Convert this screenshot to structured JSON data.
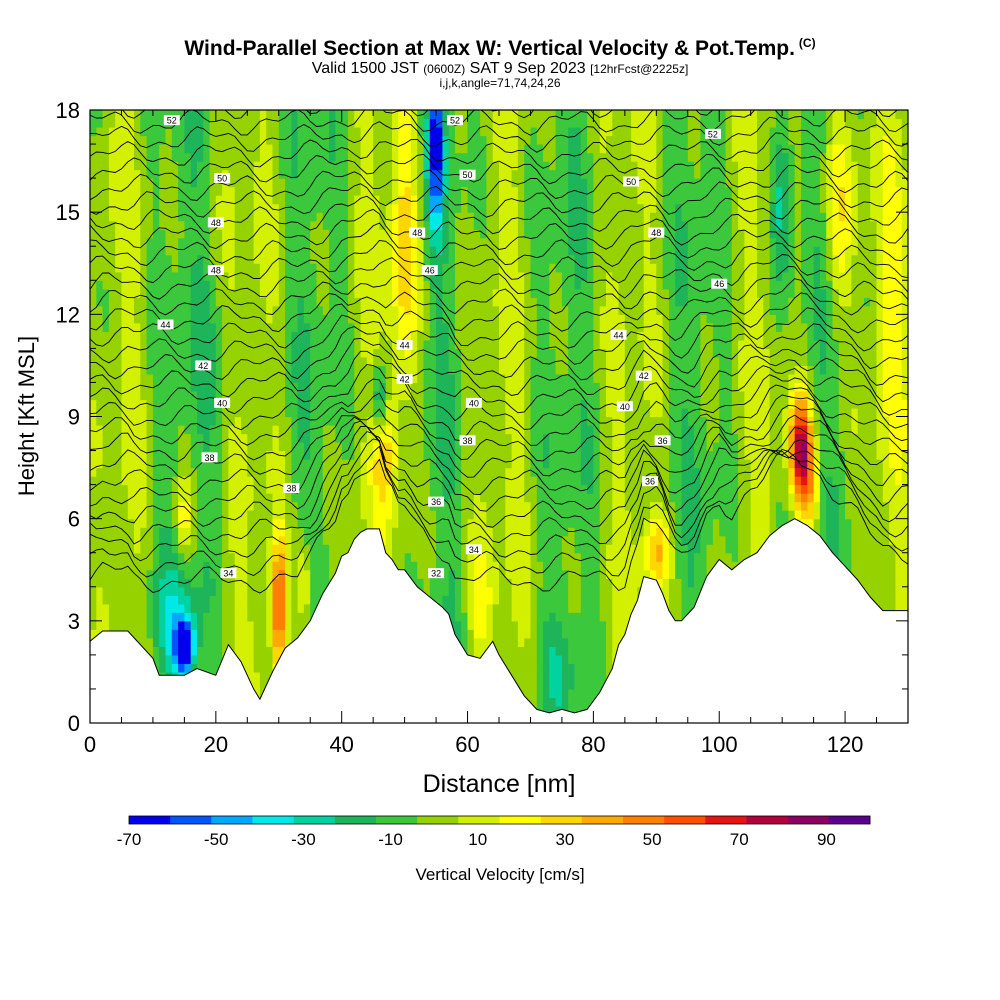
{
  "header": {
    "title": "Wind-Parallel Section at Max W: Vertical Velocity & Pot.Temp.",
    "copyright": "(C)",
    "valid_prefix": "Valid 1500 JST",
    "valid_utc": "(0600Z)",
    "valid_date": "SAT 9 Sep 2023",
    "forecast": "[12hrFcst@2225z]",
    "indices": "i,j,k,angle=71,74,24,26"
  },
  "chart_data": {
    "type": "heatmap",
    "xlabel": "Distance [nm]",
    "ylabel": "Height [Kft MSL]",
    "xlim": [
      0,
      130
    ],
    "ylim": [
      0,
      18
    ],
    "x_ticks": [
      "0",
      "20",
      "40",
      "60",
      "80",
      "100",
      "120"
    ],
    "y_ticks": [
      "0",
      "3",
      "6",
      "9",
      "12",
      "15",
      "18"
    ],
    "colorbar": {
      "label": "Vertical Velocity [cm/s]",
      "bins": [
        -70,
        -60,
        -50,
        -40,
        -30,
        -20,
        -10,
        0,
        10,
        20,
        30,
        40,
        50,
        60,
        70,
        80,
        90,
        100
      ],
      "tick_labels": [
        "-70",
        "-50",
        "-30",
        "-10",
        "10",
        "30",
        "50",
        "70",
        "90"
      ],
      "colors": [
        "#0000ee",
        "#0055ff",
        "#00a8ff",
        "#00e8e8",
        "#00d2a0",
        "#1eb45a",
        "#3cc83c",
        "#96d200",
        "#d2f000",
        "#ffff00",
        "#ffd700",
        "#ffaa00",
        "#ff8000",
        "#ff5000",
        "#e61414",
        "#b4003c",
        "#8c0064",
        "#5a008c"
      ]
    },
    "terrain_kft": {
      "x": [
        0,
        2,
        6,
        10,
        11,
        13,
        15,
        17,
        20,
        22,
        24,
        26,
        27,
        29,
        31,
        33,
        35,
        37,
        39,
        40,
        41,
        42,
        43,
        44,
        46,
        47,
        48,
        49,
        50,
        52,
        54,
        56,
        57,
        58,
        60,
        62,
        64,
        65,
        67,
        69,
        71,
        73,
        75,
        77,
        79,
        81,
        83,
        84,
        85,
        86,
        87,
        88,
        90,
        91,
        92,
        93,
        94,
        96,
        98,
        100,
        102,
        104,
        106,
        108,
        110,
        112,
        114,
        116,
        118,
        120,
        122,
        124,
        126,
        128,
        130
      ],
      "y": [
        2.4,
        2.7,
        2.7,
        1.9,
        1.4,
        1.4,
        1.4,
        1.6,
        1.4,
        2.3,
        1.8,
        1.0,
        0.7,
        1.5,
        2.2,
        2.5,
        3.0,
        3.8,
        4.4,
        4.9,
        5.0,
        5.4,
        5.6,
        5.7,
        5.7,
        5.0,
        4.8,
        4.5,
        4.5,
        4.0,
        3.7,
        3.4,
        3.2,
        2.6,
        2.0,
        1.9,
        2.4,
        2.0,
        1.4,
        0.8,
        0.4,
        0.3,
        0.4,
        0.3,
        0.4,
        0.9,
        1.6,
        2.3,
        2.6,
        3.2,
        3.6,
        4.3,
        4.2,
        3.8,
        3.3,
        3.0,
        3.0,
        3.4,
        4.3,
        4.8,
        4.5,
        4.8,
        5.0,
        5.5,
        5.8,
        6.0,
        5.8,
        5.5,
        5.0,
        4.6,
        4.2,
        3.7,
        3.3,
        3.3,
        3.3
      ]
    },
    "theta_labels": [
      {
        "x": 13,
        "y": 17.7,
        "text": "52"
      },
      {
        "x": 58,
        "y": 17.7,
        "text": "52"
      },
      {
        "x": 99,
        "y": 17.3,
        "text": "52"
      },
      {
        "x": 21,
        "y": 16.0,
        "text": "50"
      },
      {
        "x": 60,
        "y": 16.1,
        "text": "50"
      },
      {
        "x": 86,
        "y": 15.9,
        "text": "50"
      },
      {
        "x": 20,
        "y": 14.7,
        "text": "48"
      },
      {
        "x": 52,
        "y": 14.4,
        "text": "48"
      },
      {
        "x": 90,
        "y": 14.4,
        "text": "48"
      },
      {
        "x": 20,
        "y": 13.3,
        "text": "48"
      },
      {
        "x": 54,
        "y": 13.3,
        "text": "46"
      },
      {
        "x": 100,
        "y": 12.9,
        "text": "46"
      },
      {
        "x": 12,
        "y": 11.7,
        "text": "44"
      },
      {
        "x": 50,
        "y": 11.1,
        "text": "44"
      },
      {
        "x": 84,
        "y": 11.4,
        "text": "44"
      },
      {
        "x": 18,
        "y": 10.5,
        "text": "42"
      },
      {
        "x": 50,
        "y": 10.1,
        "text": "42"
      },
      {
        "x": 88,
        "y": 10.2,
        "text": "42"
      },
      {
        "x": 21,
        "y": 9.4,
        "text": "40"
      },
      {
        "x": 61,
        "y": 9.4,
        "text": "40"
      },
      {
        "x": 85,
        "y": 9.3,
        "text": "40"
      },
      {
        "x": 19,
        "y": 7.8,
        "text": "38"
      },
      {
        "x": 60,
        "y": 8.3,
        "text": "38"
      },
      {
        "x": 91,
        "y": 8.3,
        "text": "36"
      },
      {
        "x": 32,
        "y": 6.9,
        "text": "38"
      },
      {
        "x": 55,
        "y": 6.5,
        "text": "36"
      },
      {
        "x": 89,
        "y": 7.1,
        "text": "36"
      },
      {
        "x": 61,
        "y": 5.1,
        "text": "34"
      },
      {
        "x": 22,
        "y": 4.4,
        "text": "34"
      },
      {
        "x": 55,
        "y": 4.4,
        "text": "32"
      }
    ]
  }
}
